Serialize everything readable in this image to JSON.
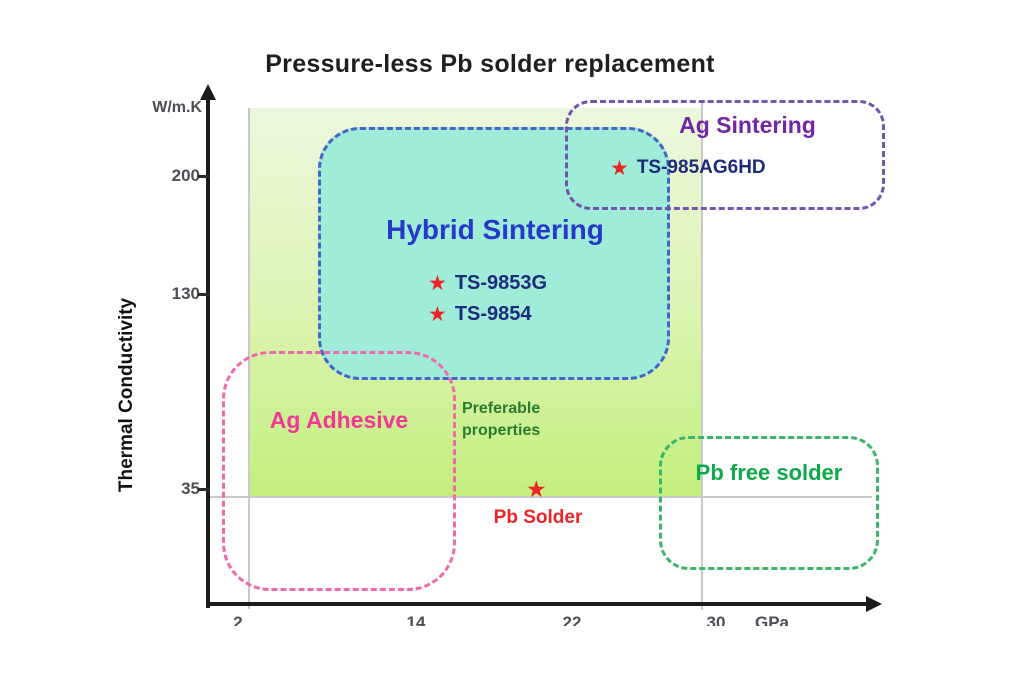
{
  "title": "Pressure-less Pb solder replacement",
  "y_axis": {
    "unit": "W/m.K",
    "label": "Thermal Conductivity",
    "ticks": [
      "200",
      "130",
      "35"
    ]
  },
  "x_axis": {
    "ticks": [
      "2",
      "14",
      "22",
      "30"
    ],
    "unit": "GPa"
  },
  "regions": {
    "hybrid": {
      "label": "Hybrid Sintering",
      "border_color": "#4a63c8",
      "fill_color": "#9fecd9",
      "text_color": "#2639cb"
    },
    "ag_sintering": {
      "label": "Ag Sintering",
      "border_color": "#7355ad",
      "text_color": "#7226a3"
    },
    "ag_adhesive": {
      "label": "Ag Adhesive",
      "border_color": "#f06aab",
      "text_color": "#f23795"
    },
    "pb_free": {
      "label": "Pb free solder",
      "border_color": "#3bb56b",
      "text_color": "#0ca94a"
    }
  },
  "annotations": {
    "preferable": "Preferable properties",
    "pb_solder": "Pb Solder"
  },
  "points": {
    "ag": "TS-985AG6HD",
    "h1": "TS-9853G",
    "h2": "TS-9854"
  },
  "icons": {
    "star": "★"
  },
  "colors": {
    "star": "#ee2326",
    "point_text": "#1d2b7c",
    "preferable_gradient_top": "#ecf8de",
    "preferable_gradient_bottom": "#c3ef7d",
    "guide_line": "#c9c9c9",
    "axis": "#1b1b1b"
  },
  "chart_data": {
    "type": "scatter",
    "title": "Pressure-less Pb solder replacement",
    "ylabel": "Thermal Conductivity",
    "y_unit": "W/m.K",
    "y_ticks": [
      200,
      130,
      35
    ],
    "x_ticks": [
      2,
      14,
      22,
      30
    ],
    "x_unit": "GPa",
    "grid": false,
    "preferable_region": {
      "x_range": [
        2,
        30
      ],
      "y_min": 35
    },
    "regions": [
      {
        "name": "Hybrid Sintering",
        "x_range": [
          4,
          29
        ],
        "y_range": [
          90,
          230
        ]
      },
      {
        "name": "Ag Sintering",
        "x_range": [
          21,
          37
        ],
        "y_range": [
          150,
          240
        ]
      },
      {
        "name": "Ag Adhesive",
        "x_range": [
          1,
          16
        ],
        "y_range": [
          5,
          75
        ]
      },
      {
        "name": "Pb free solder",
        "x_range": [
          27,
          37
        ],
        "y_range": [
          10,
          50
        ]
      }
    ],
    "points": [
      {
        "label": "TS-985AG6HD",
        "x": 25,
        "y": 205,
        "region": "Ag Sintering"
      },
      {
        "label": "TS-9853G",
        "x": 16,
        "y": 135,
        "region": "Hybrid Sintering"
      },
      {
        "label": "TS-9854",
        "x": 16,
        "y": 120,
        "region": "Hybrid Sintering"
      },
      {
        "label": "Pb Solder",
        "x": 20,
        "y": 35,
        "region": "reference"
      }
    ]
  }
}
